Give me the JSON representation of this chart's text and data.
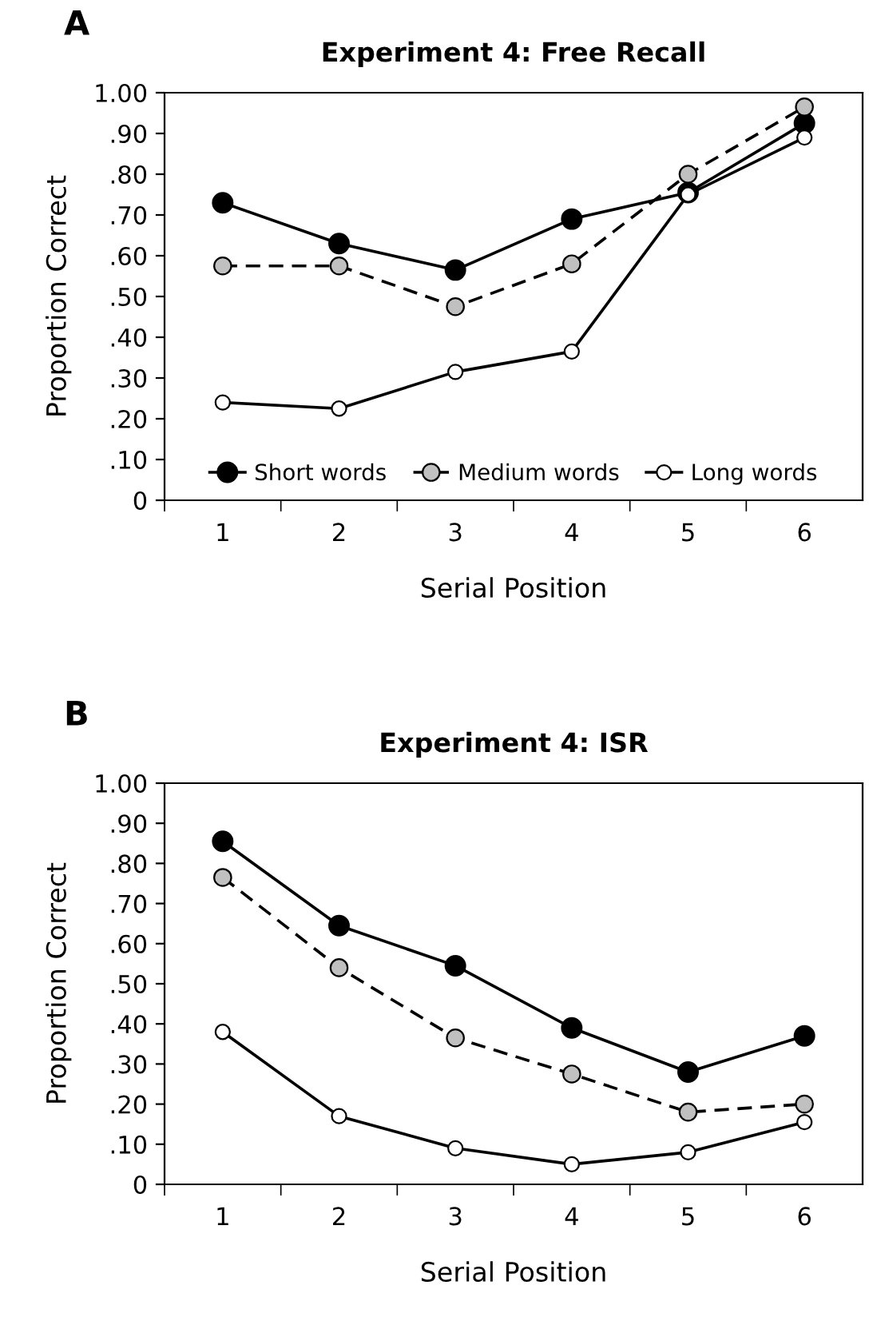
{
  "chart_data": [
    {
      "type": "line",
      "title": "Experiment 4: Free Recall",
      "annotations": [
        "A"
      ],
      "xlabel": "Serial Position",
      "ylabel": "Proportion Correct",
      "categories": [
        "1",
        "2",
        "3",
        "4",
        "5",
        "6"
      ],
      "series": [
        {
          "name": "Short words",
          "color": "#000000",
          "line_style": "solid",
          "values": [
            0.73,
            0.63,
            0.565,
            0.69,
            0.755,
            0.925
          ]
        },
        {
          "name": "Medium words",
          "color": "#c0c0c0",
          "line_style": "dashed",
          "values": [
            0.575,
            0.575,
            0.475,
            0.58,
            0.8,
            0.965
          ]
        },
        {
          "name": "Long words",
          "color": "#ffffff",
          "line_style": "solid",
          "values": [
            0.24,
            0.225,
            0.315,
            0.365,
            0.75,
            0.89
          ]
        }
      ],
      "ylim": [
        0,
        1
      ],
      "yticks": [
        0,
        {
          "value": 0.1,
          "label": ".10"
        },
        {
          "value": 0.2,
          "label": ".20"
        },
        {
          "value": 0.3,
          "label": ".30"
        },
        {
          "value": 0.4,
          "label": ".40"
        },
        {
          "value": 0.5,
          "label": ".50"
        },
        {
          "value": 0.6,
          "label": ".60"
        },
        {
          "value": 0.7,
          "label": ".70"
        },
        {
          "value": 0.8,
          "label": ".80"
        },
        {
          "value": 0.9,
          "label": ".90"
        },
        {
          "value": 1,
          "label": "1.00"
        }
      ],
      "marker": "circle",
      "legend": "bottom",
      "grid": false
    },
    {
      "type": "line",
      "title": "Experiment 4: ISR",
      "annotations": [
        "B"
      ],
      "xlabel": "Serial Position",
      "ylabel": "Proportion Correct",
      "categories": [
        "1",
        "2",
        "3",
        "4",
        "5",
        "6"
      ],
      "series": [
        {
          "color": "#000000",
          "line_style": "solid",
          "values": [
            0.855,
            0.645,
            0.545,
            0.39,
            0.28,
            0.37
          ]
        },
        {
          "color": "#c0c0c0",
          "line_style": "dashed",
          "values": [
            0.765,
            0.54,
            0.365,
            0.275,
            0.18,
            0.2
          ]
        },
        {
          "color": "#ffffff",
          "line_style": "solid",
          "values": [
            0.38,
            0.17,
            0.09,
            0.05,
            0.08,
            0.155
          ]
        }
      ],
      "ylim": [
        0,
        1
      ],
      "yticks": [
        0,
        {
          "value": 0.1,
          "label": ".10"
        },
        {
          "value": 0.2,
          "label": ".20"
        },
        {
          "value": 0.3,
          "label": ".30"
        },
        {
          "value": 0.4,
          "label": ".40"
        },
        {
          "value": 0.5,
          "label": ".50"
        },
        {
          "value": 0.6,
          "label": ".60"
        },
        {
          "value": 0.7,
          "label": ".70"
        },
        {
          "value": 0.8,
          "label": ".80"
        },
        {
          "value": 0.9,
          "label": ".90"
        },
        {
          "value": 1,
          "label": "1.00"
        }
      ],
      "marker": "circle",
      "legend": false,
      "grid": false
    }
  ]
}
